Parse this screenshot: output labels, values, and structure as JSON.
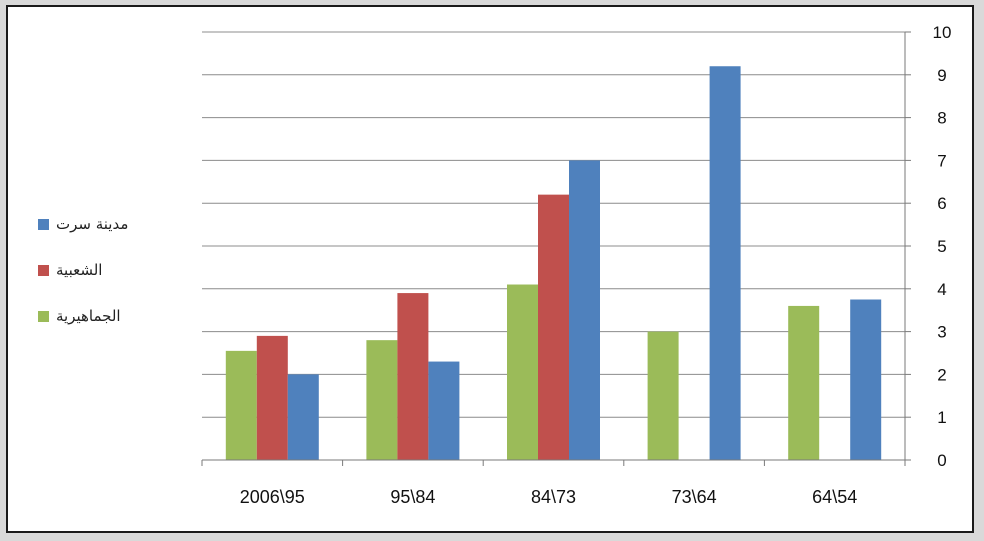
{
  "chart_data": {
    "type": "bar",
    "title": "",
    "xlabel": "",
    "ylabel": "",
    "categories": [
      "2006\\95",
      "95\\84",
      "84\\73",
      "73\\64",
      "64\\54"
    ],
    "series": [
      {
        "name": "الجماهيرية",
        "color": "#9bbb59",
        "values": [
          2.55,
          2.8,
          4.1,
          3.0,
          3.6
        ]
      },
      {
        "name": "الشعبية",
        "color": "#c0504d",
        "values": [
          2.9,
          3.9,
          6.2,
          null,
          null
        ]
      },
      {
        "name": "مدينة سرت",
        "color": "#4f81bd",
        "values": [
          2.0,
          2.3,
          7.0,
          9.2,
          3.75
        ]
      }
    ],
    "ylim": [
      0,
      10
    ],
    "yticks": [
      0,
      1,
      2,
      3,
      4,
      5,
      6,
      7,
      8,
      9,
      10
    ],
    "y_axis_side": "right",
    "grid": true,
    "legend_position": "left"
  }
}
